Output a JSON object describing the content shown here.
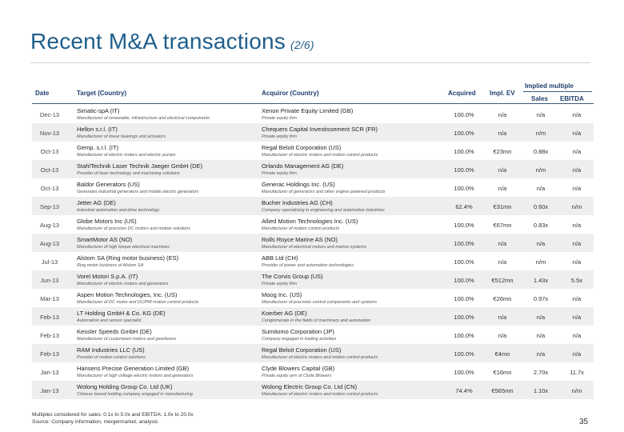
{
  "header": {
    "title": "Recent M&A transactions",
    "subtitle": "(2/6)"
  },
  "columns": {
    "date": "Date",
    "target": "Target (Country)",
    "acquiror": "Acquiror (Country)",
    "acquired": "Acquired",
    "impl_ev": "Impl. EV",
    "implied_multiples": "Implied multiple",
    "sales": "Sales",
    "ebitda": "EBITDA"
  },
  "rows": [
    {
      "date": "Dec-13",
      "target": "Simatic-spA (IT)",
      "target_desc": "Manufacturer of renewable, infrastructure and electrical components",
      "acquiror": "Xenon Private Equity Limited (GB)",
      "acquiror_desc": "Private equity firm",
      "acquired": "100.0%",
      "ev": "n/a",
      "sales": "n/a",
      "ebitda": "n/a"
    },
    {
      "date": "Nov-13",
      "target": "Hellon s.r.l. (IT)",
      "target_desc": "Manufacturer of linear bearings and actuators",
      "acquiror": "Chequers Capital Investissement SCR (FR)",
      "acquiror_desc": "Private equity firm",
      "acquired": "100.0%",
      "ev": "n/a",
      "sales": "n/m",
      "ebitda": "n/a"
    },
    {
      "date": "Oct-13",
      "target": "Gemp. s.r.l. (IT)",
      "target_desc": "Manufacturer of electric motors and electric pumps",
      "acquiror": "Regal Beloit Corporation (US)",
      "acquiror_desc": "Manufacturer of electric motors and motion control products",
      "acquired": "100.0%",
      "ev": "€23mn",
      "sales": "0.88x",
      "ebitda": "n/a"
    },
    {
      "date": "Oct-13",
      "target": "StahlTechnik Laser Technik Jaeger GmbH (DE)",
      "target_desc": "Provider of laser technology and machining solutions",
      "acquiror": "Orlando Management AG (DE)",
      "acquiror_desc": "Private equity firm",
      "acquired": "100.0%",
      "ev": "n/a",
      "sales": "n/m",
      "ebitda": "n/a"
    },
    {
      "date": "Oct-13",
      "target": "Baldor Generators (US)",
      "target_desc": "Generates industrial generators and mobile electric generators",
      "acquiror": "Generac Holdings Inc. (US)",
      "acquiror_desc": "Manufacturer of generators and other engine powered products",
      "acquired": "100.0%",
      "ev": "n/a",
      "sales": "n/a",
      "ebitda": "n/a"
    },
    {
      "date": "Sep-13",
      "target": "Jetter AG (DE)",
      "target_desc": "Industrial automation and drive technology",
      "acquiror": "Bucher Industries AG (CH)",
      "acquiror_desc": "Company specialising in engineering and automotive industries",
      "acquired": "62.4%",
      "ev": "€31mn",
      "sales": "0.60x",
      "ebitda": "n/m"
    },
    {
      "date": "Aug-13",
      "target": "Globe Motors Inc (US)",
      "target_desc": "Manufacturer of precision DC motors and motion solutions",
      "acquiror": "Allied Motion Technologies Inc. (US)",
      "acquiror_desc": "Manufacturer of motion control products",
      "acquired": "100.0%",
      "ev": "€67mn",
      "sales": "0.83x",
      "ebitda": "n/a"
    },
    {
      "date": "Aug-13",
      "target": "SmartMotor AS (NO)",
      "target_desc": "Manufacturer of high torque electrical machines",
      "acquiror": "Rolls Royce Marine AS (NO)",
      "acquiror_desc": "Manufacturer of electrical motors and marine systems",
      "acquired": "100.0%",
      "ev": "n/a",
      "sales": "n/a",
      "ebitda": "n/a"
    },
    {
      "date": "Jul-13",
      "target": "Alstom SA (Ring motor business) (ES)",
      "target_desc": "Ring motor business of Alstom SA",
      "acquiror": "ABB Ltd (CH)",
      "acquiror_desc": "Provider of power and automation technologies",
      "acquired": "100.0%",
      "ev": "n/a",
      "sales": "n/m",
      "ebitda": "n/a"
    },
    {
      "date": "Jun-13",
      "target": "Vorel Motori S.p.A. (IT)",
      "target_desc": "Manufacturer of electric motors and generators",
      "acquiror": "The Corvis Group (US)",
      "acquiror_desc": "Private equity firm",
      "acquired": "100.0%",
      "ev": "€512mn",
      "sales": "1.43x",
      "ebitda": "5.5x"
    },
    {
      "date": "Mar-13",
      "target": "Aspen Motion Technologies, Inc. (US)",
      "target_desc": "Manufacturer of DC motor and DC/PM motion control products",
      "acquiror": "Moog Inc. (US)",
      "acquiror_desc": "Manufacturer of precision control components and systems",
      "acquired": "100.0%",
      "ev": "€26mn",
      "sales": "0.97x",
      "ebitda": "n/a"
    },
    {
      "date": "Feb-13",
      "target": "LT Holding GmbH & Co. KG (DE)",
      "target_desc": "Automation and sensor specialist",
      "acquiror": "Koerber AG (DE)",
      "acquiror_desc": "Conglomerate in the fields of machinery and automation",
      "acquired": "100.0%",
      "ev": "n/a",
      "sales": "n/a",
      "ebitda": "n/a"
    },
    {
      "date": "Feb-13",
      "target": "Kessler Speeds GmbH (DE)",
      "target_desc": "Manufacturer of customized motors and gearboxes",
      "acquiror": "Sumitomo Corporation (JP)",
      "acquiror_desc": "Company engaged in trading activities",
      "acquired": "100.0%",
      "ev": "n/a",
      "sales": "n/a",
      "ebitda": "n/a"
    },
    {
      "date": "Feb-13",
      "target": "RAM Industries LLC (US)",
      "target_desc": "Provider of motion control solutions",
      "acquiror": "Regal Beloit Corporation (US)",
      "acquiror_desc": "Manufacturer of electric motors and motion control products",
      "acquired": "100.0%",
      "ev": "€4mn",
      "sales": "n/a",
      "ebitda": "n/a"
    },
    {
      "date": "Jan-13",
      "target": "Hansens Precise Generation Limited (GB)",
      "target_desc": "Manufacturer of high voltage electric motors and generators",
      "acquiror": "Clyde Blowers Capital (GB)",
      "acquiror_desc": "Private equity arm of Clyde Blowers",
      "acquired": "100.0%",
      "ev": "€16mn",
      "sales": "2.70x",
      "ebitda": "11.7x"
    },
    {
      "date": "Jan-13",
      "target": "Wolong Holding Group Co. Ltd (UK)",
      "target_desc": "Chinese based holding company engaged in manufacturing",
      "acquiror": "Wolong Electric Group Co. Ltd (CN)",
      "acquiror_desc": "Manufacturer of electric motors and motion control products",
      "acquired": "74.4%",
      "ev": "€565mn",
      "sales": "1.10x",
      "ebitda": "n/m"
    }
  ],
  "footnotes": {
    "multiples": "Multiples considered for sales: 0.1x to 5.0x and EBITDA: 1.0x to 20.0x",
    "source": "Source: Company information, mergermarket, analysis"
  },
  "page_number": "35"
}
